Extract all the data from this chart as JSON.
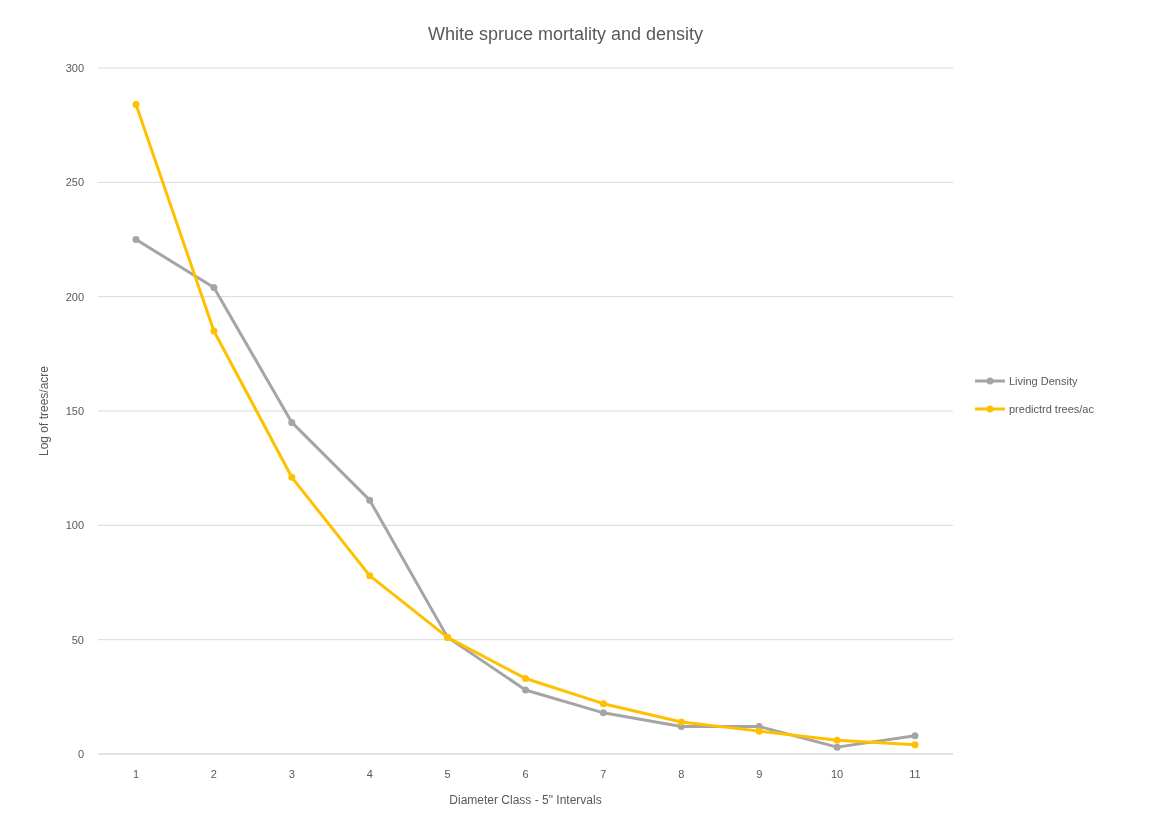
{
  "chart_data": {
    "type": "line",
    "title": "White spruce mortality and density",
    "xlabel": "Diameter Class - 5\" Intervals",
    "ylabel": "Log of trees/acre",
    "categories": [
      "1",
      "2",
      "3",
      "4",
      "5",
      "6",
      "7",
      "8",
      "9",
      "10",
      "11"
    ],
    "series": [
      {
        "name": "Living Density",
        "color": "#a5a5a5",
        "values": [
          225,
          204,
          145,
          111,
          51,
          28,
          18,
          12,
          12,
          3,
          8
        ]
      },
      {
        "name": "predictrd trees/ac",
        "color": "#ffc000",
        "values": [
          284,
          185,
          121,
          78,
          51,
          33,
          22,
          14,
          10,
          6,
          4
        ]
      }
    ],
    "ylim": [
      0,
      300
    ],
    "yticks": [
      0,
      50,
      100,
      150,
      200,
      250,
      300
    ],
    "grid": "y",
    "legend": "right",
    "marker": "circle",
    "line_style": "solid"
  }
}
